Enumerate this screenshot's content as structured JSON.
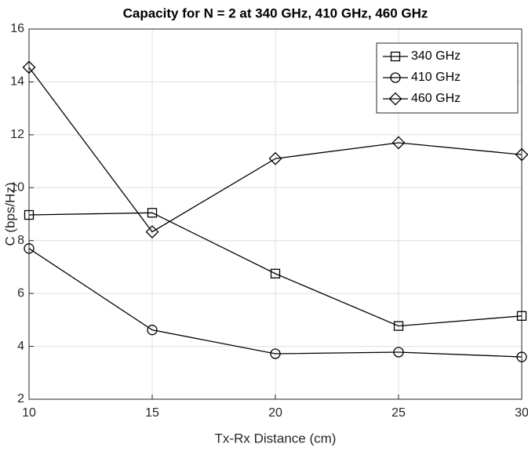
{
  "chart_data": {
    "type": "line",
    "title": "Capacity for N = 2 at 340 GHz, 410 GHz, 460 GHz",
    "xlabel": "Tx-Rx Distance (cm)",
    "ylabel": "C (bps/Hz)",
    "x": [
      10,
      15,
      20,
      25,
      30
    ],
    "series": [
      {
        "name": "340 GHz",
        "color": "#000000",
        "marker": "square",
        "values": [
          8.97,
          9.05,
          6.75,
          4.77,
          5.15
        ]
      },
      {
        "name": "410 GHz",
        "color": "#000000",
        "marker": "circle",
        "values": [
          7.7,
          4.62,
          3.72,
          3.78,
          3.6
        ]
      },
      {
        "name": "460 GHz",
        "color": "#000000",
        "marker": "diamond",
        "values": [
          14.55,
          8.33,
          11.1,
          11.7,
          11.25
        ]
      }
    ],
    "xlim": [
      10,
      30
    ],
    "xticks": [
      10,
      15,
      20,
      25,
      30
    ],
    "ylim": [
      2,
      16
    ],
    "yticks": [
      2,
      4,
      6,
      8,
      10,
      12,
      14,
      16
    ],
    "grid": true,
    "legend": "top-right"
  }
}
